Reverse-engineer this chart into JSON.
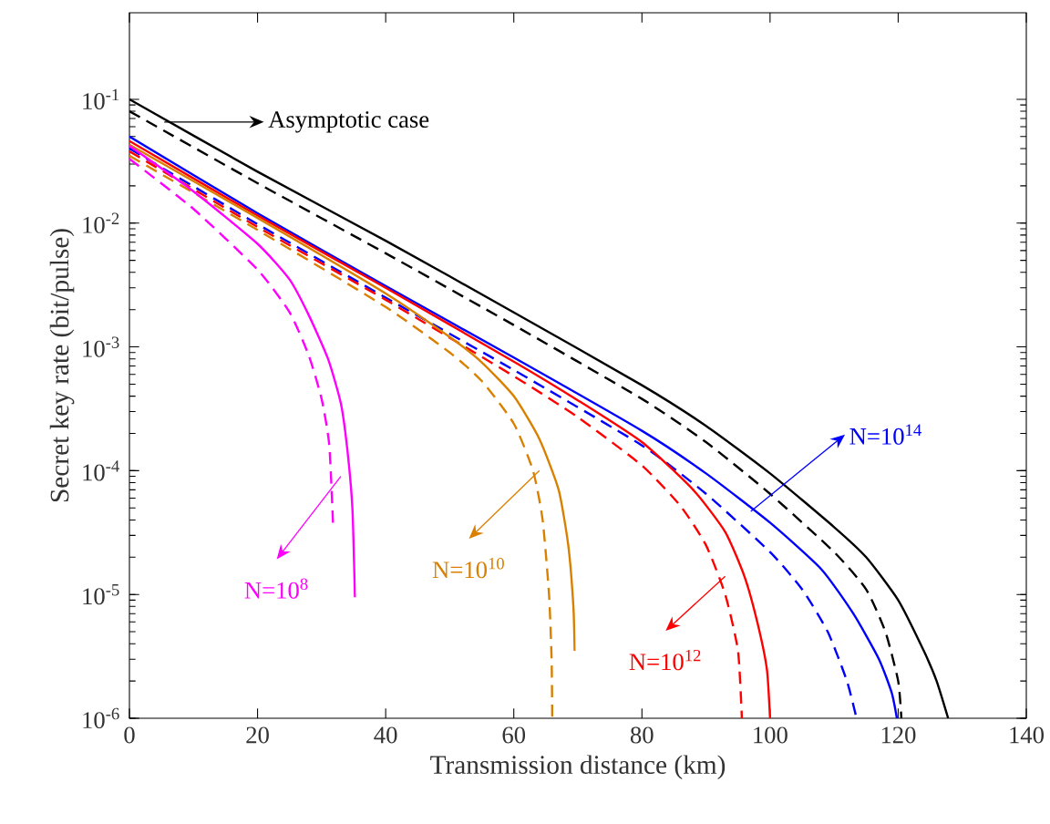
{
  "chart_data": {
    "type": "line",
    "xlabel": "Transmission distance (km)",
    "ylabel": "Secret key rate (bit/pulse)",
    "log": "y",
    "grid": false,
    "marker": "none",
    "xlim": [
      0,
      140
    ],
    "xticks": [
      0,
      20,
      40,
      60,
      80,
      100,
      120,
      140
    ],
    "ylim": [
      1e-06,
      0.5
    ],
    "yticks": [
      {
        "value": 1e-06,
        "label": "10$^{-6}$"
      },
      {
        "value": 1e-05,
        "label": "10$^{-5}$"
      },
      {
        "value": 0.0001,
        "label": "10$^{-4}$"
      },
      {
        "value": 0.001,
        "label": "10$^{-3}$"
      },
      {
        "value": 0.01,
        "label": "10$^{-2}$"
      },
      {
        "value": 0.1,
        "label": "10$^{-1}$"
      }
    ],
    "series": [
      {
        "color": "#000000",
        "line_style": "solid",
        "x": [
          0,
          20,
          40,
          60,
          80,
          90,
          100,
          110,
          115,
          120,
          124,
          126,
          127.8
        ],
        "values": [
          0.1,
          0.026,
          0.0072,
          0.0019,
          0.00049,
          0.00023,
          9.5e-05,
          3.5e-05,
          2e-05,
          9e-06,
          3.5e-06,
          2e-06,
          1e-06
        ]
      },
      {
        "color": "#000000",
        "line_style": "dashed",
        "x": [
          0,
          20,
          40,
          60,
          80,
          90,
          100,
          110,
          115,
          118,
          120,
          120.5
        ],
        "values": [
          0.08,
          0.021,
          0.0057,
          0.0015,
          0.00038,
          0.00017,
          6.5e-05,
          2.2e-05,
          1.1e-05,
          5e-06,
          2e-06,
          1e-06
        ]
      },
      {
        "color": "#0000ff",
        "line_style": "solid",
        "x": [
          0,
          20,
          40,
          60,
          80,
          90,
          100,
          108,
          113,
          117,
          119,
          119.8
        ],
        "values": [
          0.05,
          0.012,
          0.0031,
          0.00082,
          0.00021,
          9.5e-05,
          3.8e-05,
          1.6e-05,
          7e-06,
          3e-06,
          1.6e-06,
          1e-06
        ]
      },
      {
        "color": "#0000ff",
        "line_style": "dashed",
        "x": [
          0,
          20,
          40,
          60,
          80,
          90,
          100,
          105,
          109,
          112,
          113.5
        ],
        "values": [
          0.04,
          0.0098,
          0.0025,
          0.00065,
          0.00016,
          6.5e-05,
          2.2e-05,
          1.1e-05,
          5e-06,
          2e-06,
          1e-06
        ]
      },
      {
        "color": "#ff0000",
        "line_style": "solid",
        "x": [
          0,
          20,
          40,
          60,
          70,
          80,
          88,
          93,
          96,
          98,
          99.5,
          100
        ],
        "values": [
          0.046,
          0.0115,
          0.003,
          0.00076,
          0.00037,
          0.00017,
          7e-05,
          3.2e-05,
          1.4e-05,
          6e-06,
          2.5e-06,
          1e-06
        ]
      },
      {
        "color": "#ff0000",
        "line_style": "dashed",
        "x": [
          0,
          20,
          40,
          60,
          70,
          80,
          86,
          90,
          93,
          95,
          95.6
        ],
        "values": [
          0.038,
          0.0093,
          0.0024,
          0.00058,
          0.00027,
          0.00011,
          5.2e-05,
          2.5e-05,
          1e-05,
          3.5e-06,
          1e-06
        ]
      },
      {
        "color": "#d98000",
        "line_style": "solid",
        "x": [
          0,
          20,
          40,
          50,
          55,
          60,
          64,
          67,
          68.5,
          69.3,
          69.5
        ],
        "values": [
          0.043,
          0.011,
          0.0027,
          0.0012,
          0.00075,
          0.0004,
          0.00018,
          7e-05,
          2.5e-05,
          8e-06,
          3.5e-06
        ]
      },
      {
        "color": "#d98000",
        "line_style": "dashed",
        "x": [
          0,
          20,
          40,
          50,
          55,
          60,
          63,
          64.5,
          65.5,
          65.9,
          66
        ],
        "values": [
          0.035,
          0.0088,
          0.0021,
          0.0009,
          0.00053,
          0.00024,
          0.0001,
          4e-05,
          1e-05,
          3e-06,
          1e-06
        ]
      },
      {
        "color": "#ff00ff",
        "line_style": "solid",
        "x": [
          0,
          10,
          20,
          25,
          28,
          31,
          33,
          34,
          34.8,
          35.2
        ],
        "values": [
          0.042,
          0.018,
          0.0068,
          0.0035,
          0.0018,
          0.0008,
          0.00035,
          0.00015,
          5e-05,
          9.5e-06
        ]
      },
      {
        "color": "#ff00ff",
        "line_style": "dashed",
        "x": [
          0,
          10,
          20,
          25,
          28,
          30,
          31.2,
          31.8
        ],
        "values": [
          0.033,
          0.013,
          0.0042,
          0.0019,
          0.00085,
          0.00038,
          0.00016,
          3.5e-05
        ]
      }
    ],
    "annotations": [
      "Asymptotic case",
      {
        "text": "N=10$^{8}$",
        "x": 33,
        "y": 9e-05
      },
      {
        "text": "N=10$^{10}$",
        "x": 64,
        "y": 0.0001
      },
      {
        "text": "N=10$^{12}$",
        "x": 93,
        "y": 1.4e-05
      },
      {
        "text": "N=10$^{14}$",
        "x": 97,
        "y": 4.7e-05
      }
    ]
  }
}
